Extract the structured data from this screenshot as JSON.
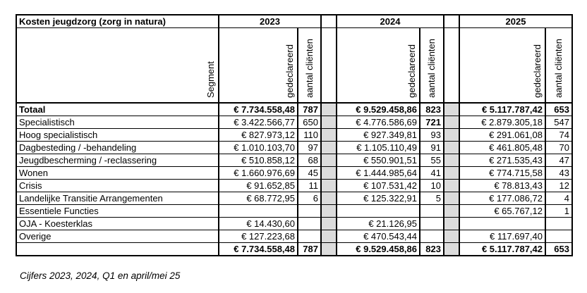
{
  "table": {
    "title": "Kosten jeugdzorg (zorg in natura)",
    "year_groups": {
      "y2023": "2023",
      "y2024": "2024",
      "y2025": "2025"
    },
    "col_headers": {
      "segment": "Segment",
      "declared": "gedeclareerd",
      "clients": "aantal cliënten"
    },
    "rows": [
      {
        "label": "Totaal",
        "a23": "€ 7.734.558,48",
        "n23": "787",
        "a24": "€ 9.529.458,86",
        "n24": "823",
        "a25": "€ 5.117.787,42",
        "n25": "653"
      },
      {
        "label": "Specialistisch",
        "a23": "€ 3.422.566,77",
        "n23": "650",
        "a24": "€ 4.776.586,69",
        "n24": "721",
        "a25": "€ 2.879.305,18",
        "n25": "547"
      },
      {
        "label": "Hoog specialistisch",
        "a23": "€ 827.973,12",
        "n23": "110",
        "a24": "€ 927.349,81",
        "n24": "93",
        "a25": "€ 291.061,08",
        "n25": "74"
      },
      {
        "label": "Dagbesteding / -behandeling",
        "a23": "€ 1.010.103,70",
        "n23": "97",
        "a24": "€ 1.105.110,49",
        "n24": "91",
        "a25": "€ 461.805,48",
        "n25": "70"
      },
      {
        "label": "Jeugdbescherming / -reclassering",
        "a23": "€ 510.858,12",
        "n23": "68",
        "a24": "€ 550.901,51",
        "n24": "55",
        "a25": "€ 271.535,43",
        "n25": "47"
      },
      {
        "label": "Wonen",
        "a23": "€ 1.660.976,69",
        "n23": "45",
        "a24": "€ 1.444.985,64",
        "n24": "41",
        "a25": "€ 774.715,58",
        "n25": "43"
      },
      {
        "label": "Crisis",
        "a23": "€ 91.652,85",
        "n23": "11",
        "a24": "€ 107.531,42",
        "n24": "10",
        "a25": "€ 78.813,43",
        "n25": "12"
      },
      {
        "label": "Landelijke Transitie Arrangementen",
        "a23": "€ 68.772,95",
        "n23": "6",
        "a24": "€ 125.322,91",
        "n24": "5",
        "a25": "€ 177.086,72",
        "n25": "4"
      },
      {
        "label": "Essentiele Functies",
        "a23": "",
        "n23": "",
        "a24": "",
        "n24": "",
        "a25": "€ 65.767,12",
        "n25": "1"
      },
      {
        "label": "OJA - Koesterklas",
        "a23": "€ 14.430,60",
        "n23": "",
        "a24": "€ 21.126,95",
        "n24": "",
        "a25": "",
        "n25": ""
      },
      {
        "label": "Overige",
        "a23": "€ 127.223,68",
        "n23": "",
        "a24": "€ 470.543,44",
        "n24": "",
        "a25": "€ 117.697,40",
        "n25": ""
      },
      {
        "label": "",
        "a23": "€ 7.734.558,48",
        "n23": "787",
        "a24": "€ 9.529.458,86",
        "n24": "823",
        "a25": "€ 5.117.787,42",
        "n25": "653"
      }
    ],
    "footnote": "Cijfers 2023, 2024, Q1 en april/mei 25",
    "colors": {
      "separator_fill": "#dcdcdc",
      "border": "#000000"
    }
  }
}
